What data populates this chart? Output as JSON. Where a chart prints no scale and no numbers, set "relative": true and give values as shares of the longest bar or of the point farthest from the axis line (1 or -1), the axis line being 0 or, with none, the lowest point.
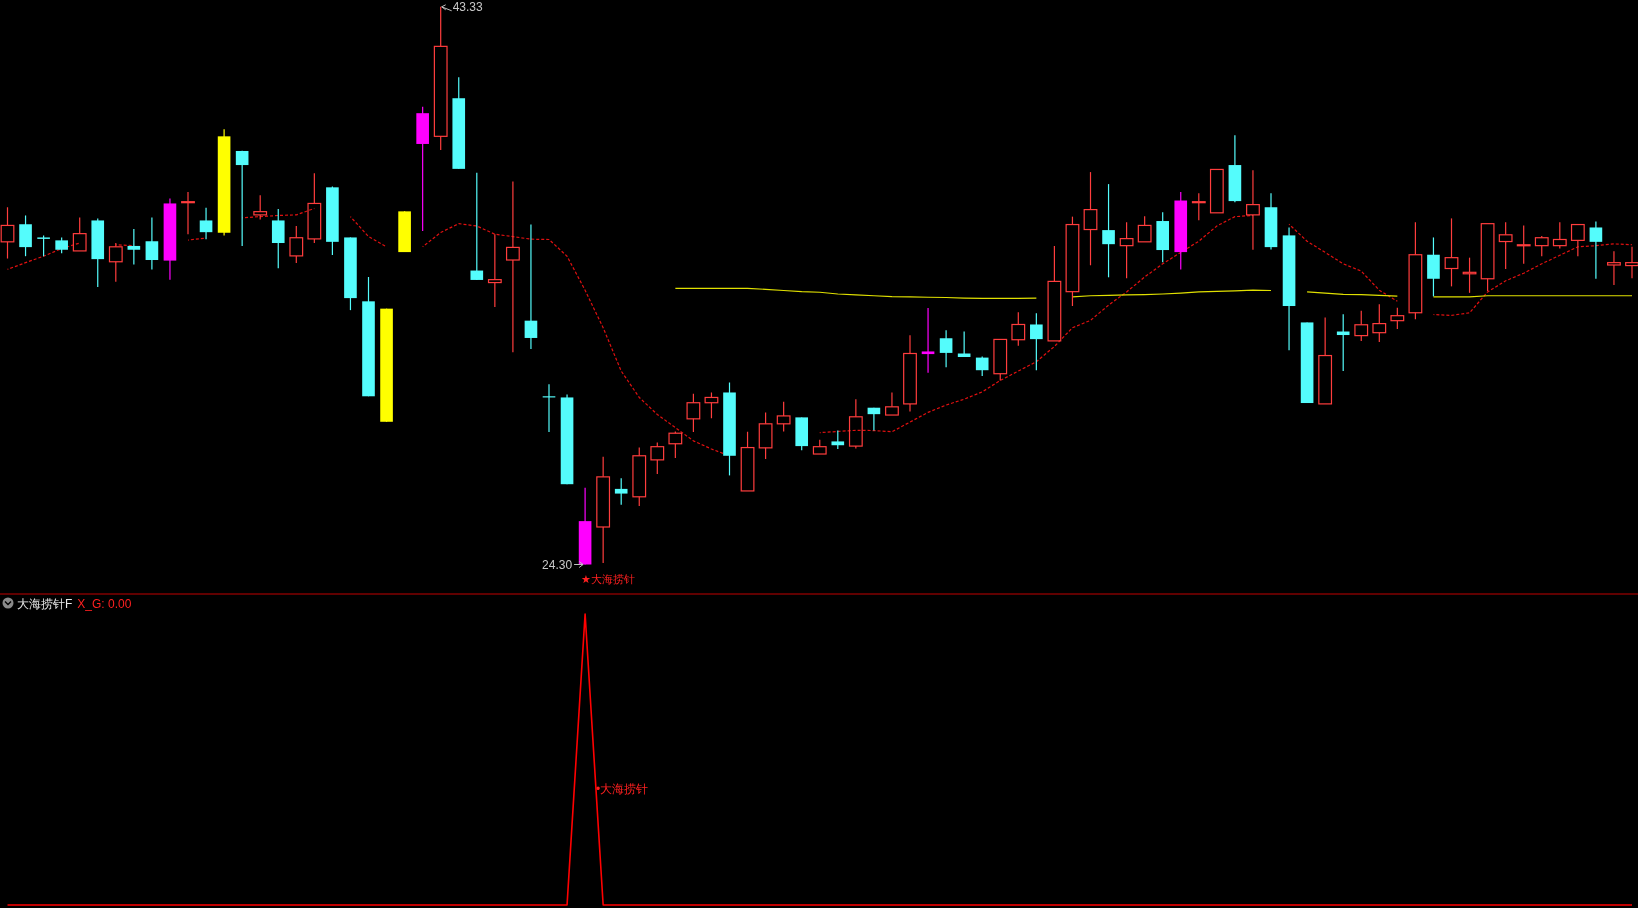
{
  "chart_data": [
    {
      "type": "candlestick",
      "categories": [
        null,
        null,
        null,
        null,
        null,
        null,
        null,
        null,
        null,
        null,
        null,
        null,
        null,
        null,
        null,
        null,
        null,
        null,
        null,
        null,
        null,
        null,
        null,
        null,
        null,
        null,
        null,
        null,
        null,
        null,
        null,
        null,
        null,
        null,
        null,
        null,
        null,
        null,
        null,
        null,
        null,
        null,
        null,
        null,
        null,
        null,
        null,
        null,
        null,
        null,
        null,
        null,
        null,
        null,
        null,
        null,
        null,
        null,
        null,
        null,
        null,
        null,
        null,
        null,
        null,
        null,
        null,
        null,
        null,
        null,
        null,
        null,
        null,
        null,
        null,
        null,
        null,
        null,
        null,
        null,
        null,
        null,
        null,
        null,
        null,
        null,
        null,
        null,
        null,
        null,
        null
      ],
      "ohlc": [
        [
          35.31,
          36.49,
          34.74,
          35.87
        ],
        [
          35.91,
          36.21,
          34.82,
          35.13
        ],
        [
          35.46,
          35.53,
          34.82,
          35.41
        ],
        [
          35.36,
          35.46,
          34.92,
          35.04
        ],
        [
          35.0,
          36.14,
          35.0,
          35.59
        ],
        [
          36.04,
          36.11,
          33.77,
          34.72
        ],
        [
          34.63,
          35.27,
          33.95,
          35.14
        ],
        [
          35.17,
          35.75,
          34.54,
          35.04
        ],
        [
          35.33,
          36.14,
          34.37,
          34.69
        ],
        [
          36.62,
          36.79,
          34.02,
          34.67
        ],
        [
          36.66,
          37.01,
          35.57,
          36.68
        ],
        [
          36.04,
          36.47,
          35.4,
          35.64
        ],
        [
          38.91,
          39.15,
          35.53,
          35.62
        ],
        [
          38.41,
          38.42,
          35.17,
          37.93
        ],
        [
          36.23,
          36.9,
          36.07,
          36.34
        ],
        [
          36.04,
          36.43,
          34.41,
          35.27
        ],
        [
          34.83,
          35.85,
          34.59,
          35.45
        ],
        [
          35.41,
          37.65,
          35.27,
          36.62
        ],
        [
          37.17,
          37.2,
          34.86,
          35.31
        ],
        [
          35.46,
          35.46,
          32.98,
          33.39
        ],
        [
          33.28,
          34.11,
          30.04,
          30.04
        ],
        [
          33.03,
          33.03,
          29.17,
          29.17
        ],
        [
          36.35,
          36.35,
          34.96,
          34.96
        ],
        [
          39.7,
          39.92,
          35.68,
          38.65
        ],
        [
          38.91,
          43.33,
          38.44,
          41.98
        ],
        [
          40.21,
          40.93,
          37.8,
          37.8
        ],
        [
          34.33,
          37.67,
          34.01,
          34.01
        ],
        [
          33.92,
          35.57,
          33.09,
          34.02
        ],
        [
          34.69,
          37.37,
          31.54,
          35.12
        ],
        [
          32.62,
          35.9,
          31.65,
          32.03
        ],
        [
          30.04,
          30.45,
          28.82,
          30.0
        ],
        [
          30.0,
          30.1,
          27.04,
          27.04
        ],
        [
          25.78,
          26.92,
          24.3,
          24.3
        ],
        [
          25.58,
          27.98,
          24.35,
          27.29
        ],
        [
          26.88,
          27.24,
          26.34,
          26.72
        ],
        [
          26.61,
          28.29,
          26.3,
          28.01
        ],
        [
          27.87,
          28.46,
          27.39,
          28.32
        ],
        [
          28.42,
          28.84,
          27.93,
          28.78
        ],
        [
          29.27,
          30.13,
          28.82,
          29.82
        ],
        [
          29.82,
          30.17,
          29.29,
          30.0
        ],
        [
          30.17,
          30.51,
          27.34,
          28.01
        ],
        [
          26.81,
          28.83,
          26.81,
          28.29
        ],
        [
          28.28,
          29.49,
          27.9,
          29.1
        ],
        [
          29.1,
          29.85,
          28.84,
          29.37
        ],
        [
          29.32,
          29.32,
          28.2,
          28.34
        ],
        [
          28.07,
          28.56,
          28.03,
          28.32
        ],
        [
          28.5,
          28.87,
          28.24,
          28.37
        ],
        [
          28.34,
          29.94,
          28.26,
          29.34
        ],
        [
          29.65,
          29.65,
          28.87,
          29.43
        ],
        [
          29.4,
          30.17,
          29.36,
          29.68
        ],
        [
          29.78,
          32.12,
          29.52,
          31.5
        ],
        [
          31.57,
          33.05,
          30.84,
          31.48
        ],
        [
          32.02,
          32.29,
          31.03,
          31.52
        ],
        [
          31.5,
          32.25,
          31.38,
          31.38
        ],
        [
          31.36,
          31.4,
          30.73,
          30.93
        ],
        [
          30.81,
          31.99,
          30.58,
          31.98
        ],
        [
          31.97,
          32.91,
          31.76,
          32.49
        ],
        [
          32.49,
          32.87,
          30.93,
          31.99
        ],
        [
          31.93,
          35.17,
          31.93,
          33.96
        ],
        [
          33.61,
          36.17,
          33.12,
          35.9
        ],
        [
          35.73,
          37.69,
          34.51,
          36.41
        ],
        [
          35.71,
          37.28,
          34.1,
          35.23
        ],
        [
          35.18,
          35.98,
          34.07,
          35.42
        ],
        [
          35.31,
          36.18,
          35.31,
          35.87
        ],
        [
          36.02,
          36.32,
          34.61,
          35.03
        ],
        [
          36.72,
          37.01,
          34.37,
          34.96
        ],
        [
          36.67,
          36.97,
          36.05,
          36.68
        ],
        [
          36.3,
          37.78,
          36.3,
          37.78
        ],
        [
          37.93,
          38.95,
          36.66,
          36.7
        ],
        [
          36.23,
          37.75,
          35.04,
          36.58
        ],
        [
          36.49,
          36.97,
          35.05,
          35.13
        ],
        [
          35.53,
          35.8,
          31.61,
          33.12
        ],
        [
          32.56,
          32.56,
          29.81,
          29.81
        ],
        [
          29.78,
          32.73,
          29.78,
          31.43
        ],
        [
          32.25,
          32.84,
          30.9,
          32.13
        ],
        [
          32.11,
          32.96,
          31.93,
          32.48
        ],
        [
          32.21,
          33.18,
          31.89,
          32.52
        ],
        [
          32.62,
          33.06,
          32.34,
          32.79
        ],
        [
          32.89,
          35.98,
          32.67,
          34.87
        ],
        [
          34.87,
          35.46,
          33.45,
          34.05
        ],
        [
          34.4,
          36.11,
          33.79,
          34.77
        ],
        [
          34.22,
          34.77,
          33.57,
          34.27
        ],
        [
          34.05,
          35.94,
          33.63,
          35.93
        ],
        [
          35.32,
          35.98,
          34.38,
          35.55
        ],
        [
          35.18,
          35.87,
          34.56,
          35.21
        ],
        [
          35.18,
          35.51,
          34.82,
          35.45
        ],
        [
          35.18,
          35.98,
          35.08,
          35.39
        ],
        [
          35.36,
          35.93,
          34.82,
          35.9
        ],
        [
          35.8,
          36.0,
          34.05,
          35.31
        ],
        [
          34.52,
          34.99,
          33.84,
          34.6
        ],
        [
          34.5,
          35.14,
          34.07,
          34.6
        ]
      ],
      "colors": [
        "#ff3d3d",
        "#54fcfc",
        "#54fcfc",
        "#54fcfc",
        "#ff3d3d",
        "#54fcfc",
        "#ff3d3d",
        "#54fcfc",
        "#54fcfc",
        "#ff00ff",
        "#ff3d3d",
        "#54fcfc",
        "#ffff00",
        "#54fcfc",
        "#ff3d3d",
        "#54fcfc",
        "#ff3d3d",
        "#ff3d3d",
        "#54fcfc",
        "#54fcfc",
        "#54fcfc",
        "#ffff00",
        "#ffff00",
        "#ff00ff",
        "#ff3d3d",
        "#54fcfc",
        "#54fcfc",
        "#ff3d3d",
        "#ff3d3d",
        "#54fcfc",
        "#54fcfc",
        "#54fcfc",
        "#ff00ff",
        "#ff3d3d",
        "#54fcfc",
        "#ff3d3d",
        "#ff3d3d",
        "#ff3d3d",
        "#ff3d3d",
        "#ff3d3d",
        "#54fcfc",
        "#ff3d3d",
        "#ff3d3d",
        "#ff3d3d",
        "#54fcfc",
        "#ff3d3d",
        "#54fcfc",
        "#ff3d3d",
        "#54fcfc",
        "#ff3d3d",
        "#ff3d3d",
        "#ff00ff",
        "#54fcfc",
        "#54fcfc",
        "#54fcfc",
        "#ff3d3d",
        "#ff3d3d",
        "#54fcfc",
        "#ff3d3d",
        "#ff3d3d",
        "#ff3d3d",
        "#54fcfc",
        "#ff3d3d",
        "#ff3d3d",
        "#54fcfc",
        "#ff00ff",
        "#ff3d3d",
        "#ff3d3d",
        "#54fcfc",
        "#ff3d3d",
        "#54fcfc",
        "#54fcfc",
        "#54fcfc",
        "#ff3d3d",
        "#54fcfc",
        "#ff3d3d",
        "#ff3d3d",
        "#ff3d3d",
        "#ff3d3d",
        "#54fcfc",
        "#ff3d3d",
        "#ff3d3d",
        "#ff3d3d",
        "#ff3d3d",
        "#ff3d3d",
        "#ff3d3d",
        "#ff3d3d",
        "#ff3d3d",
        "#54fcfc",
        "#ff3d3d",
        "#ff3d3d"
      ],
      "series": [
        {
          "type": "line",
          "color": "#e01010",
          "line_style": "dashed",
          "values": [
            34.37,
            34.6,
            34.82,
            35.08,
            35.27,
            null,
            35.21,
            35.18,
            null,
            null,
            35.37,
            35.44,
            null,
            36.13,
            36.17,
            36.21,
            36.23,
            36.45,
            null,
            36.17,
            35.49,
            35.14,
            null,
            35.14,
            35.63,
            35.93,
            35.85,
            35.57,
            35.49,
            35.4,
            35.39,
            34.82,
            33.66,
            32.38,
            30.9,
            30.0,
            29.42,
            28.97,
            28.52,
            28.24,
            28.01,
            null,
            null,
            null,
            null,
            28.8,
            28.84,
            28.88,
            28.87,
            28.83,
            29.16,
            29.49,
            29.74,
            29.94,
            30.19,
            30.58,
            30.9,
            31.22,
            31.74,
            32.38,
            32.63,
            33.15,
            33.6,
            34.11,
            34.56,
            34.95,
            35.33,
            35.85,
            36.17,
            36.21,
            null,
            35.91,
            35.33,
            34.95,
            34.56,
            34.31,
            33.66,
            33.28,
            null,
            32.83,
            32.8,
            32.89,
            33.6,
            33.98,
            34.24,
            34.56,
            34.85,
            35.14,
            35.18,
            35.24,
            35.21
          ]
        },
        {
          "type": "line",
          "color": "#e0e000",
          "values": [
            null,
            null,
            null,
            null,
            null,
            null,
            null,
            null,
            null,
            null,
            null,
            null,
            null,
            null,
            null,
            null,
            null,
            null,
            null,
            null,
            null,
            null,
            null,
            null,
            null,
            null,
            null,
            null,
            null,
            null,
            null,
            null,
            null,
            null,
            null,
            null,
            null,
            33.72,
            33.72,
            33.72,
            33.72,
            33.72,
            33.69,
            33.65,
            33.61,
            33.59,
            33.53,
            33.5,
            33.47,
            33.44,
            33.43,
            33.42,
            33.41,
            33.39,
            33.38,
            33.38,
            33.38,
            33.39,
            null,
            33.43,
            33.47,
            33.48,
            33.5,
            33.51,
            33.53,
            33.56,
            33.6,
            33.62,
            33.64,
            33.66,
            33.65,
            null,
            33.6,
            33.56,
            33.52,
            33.51,
            33.48,
            33.46,
            null,
            33.43,
            33.43,
            33.43,
            33.47,
            33.47,
            33.47,
            33.47,
            33.47,
            33.47,
            33.47,
            33.47,
            33.47
          ]
        }
      ],
      "annotations": [
        "43.33",
        "24.30",
        "★大海捞针"
      ]
    },
    {
      "type": "line",
      "relative": true,
      "color": "#ff0000",
      "title": "大海捞针F",
      "subtitle": "X_G: 0.00",
      "categories": [
        null,
        null,
        null,
        null,
        null,
        null,
        null,
        null,
        null,
        null,
        null,
        null,
        null,
        null,
        null,
        null,
        null,
        null,
        null,
        null,
        null,
        null,
        null,
        null,
        null,
        null,
        null,
        null,
        null,
        null,
        null,
        null,
        null,
        null,
        null,
        null,
        null,
        null,
        null,
        null,
        null,
        null,
        null,
        null,
        null,
        null,
        null,
        null,
        null,
        null,
        null,
        null,
        null,
        null,
        null,
        null,
        null,
        null,
        null,
        null,
        null,
        null,
        null,
        null,
        null,
        null,
        null,
        null,
        null,
        null,
        null,
        null,
        null,
        null,
        null,
        null,
        null,
        null,
        null,
        null,
        null,
        null,
        null,
        null,
        null,
        null,
        null,
        null,
        null,
        null,
        null
      ],
      "values": [
        0,
        0,
        0,
        0,
        0,
        0,
        0,
        0,
        0,
        0,
        0,
        0,
        0,
        0,
        0,
        0,
        0,
        0,
        0,
        0,
        0,
        0,
        0,
        0,
        0,
        0,
        0,
        0,
        0,
        0,
        0,
        0,
        1,
        0,
        0,
        0,
        0,
        0,
        0,
        0,
        0,
        0,
        0,
        0,
        0,
        0,
        0,
        0,
        0,
        0,
        0,
        0,
        0,
        0,
        0,
        0,
        0,
        0,
        0,
        0,
        0,
        0,
        0,
        0,
        0,
        0,
        0,
        0,
        0,
        0,
        0,
        0,
        0,
        0,
        0,
        0,
        0,
        0,
        0,
        0,
        0,
        0,
        0,
        0,
        0,
        0,
        0,
        0,
        0,
        0,
        0
      ],
      "annotations": [
        "•大海捞针"
      ]
    }
  ]
}
